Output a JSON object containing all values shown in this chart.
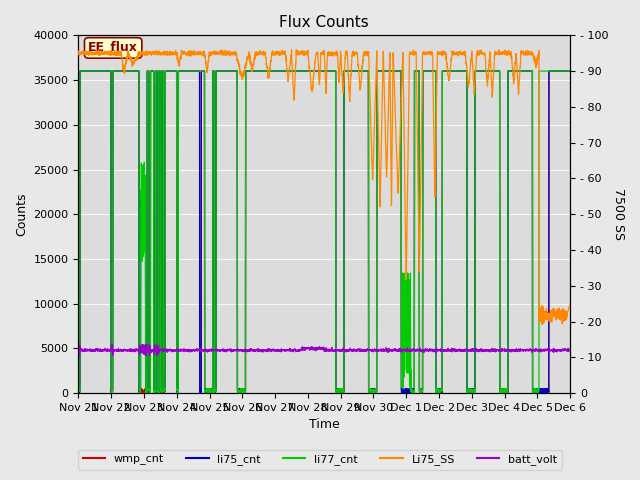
{
  "title": "Flux Counts",
  "ylabel_left": "Counts",
  "ylabel_right": "7500 SS",
  "xlabel": "Time",
  "ylim_left": [
    0,
    40000
  ],
  "ylim_right": [
    0,
    100
  ],
  "background_color": "#e8e8e8",
  "plot_bg_color": "#dcdcdc",
  "annotation_text": "EE_flux",
  "legend_entries": [
    "wmp_cnt",
    "li75_cnt",
    "li77_cnt",
    "Li75_SS",
    "batt_volt"
  ],
  "line_colors": {
    "wmp_cnt": "#cc0000",
    "li75_cnt": "#0000cc",
    "li77_cnt": "#00cc00",
    "Li75_SS": "#ff8800",
    "batt_volt": "#9900cc"
  },
  "x_tick_labels": [
    "Nov 21",
    "Nov 22",
    "Nov 23",
    "Nov 24",
    "Nov 25",
    "Nov 26",
    "Nov 27",
    "Nov 28",
    "Nov 29",
    "Nov 30",
    "Dec 1",
    "Dec 2",
    "Dec 3",
    "Dec 4",
    "Dec 5",
    "Dec 6"
  ],
  "yticks_left": [
    0,
    5000,
    10000,
    15000,
    20000,
    25000,
    30000,
    35000,
    40000
  ],
  "yticks_right": [
    0,
    10,
    20,
    30,
    40,
    50,
    60,
    70,
    80,
    90,
    100
  ],
  "n_days": 15,
  "base_count": 36000,
  "base_batt": 4800,
  "base_ss": 95,
  "ss_dip_low": 53,
  "figsize": [
    6.4,
    4.8
  ],
  "dpi": 100
}
